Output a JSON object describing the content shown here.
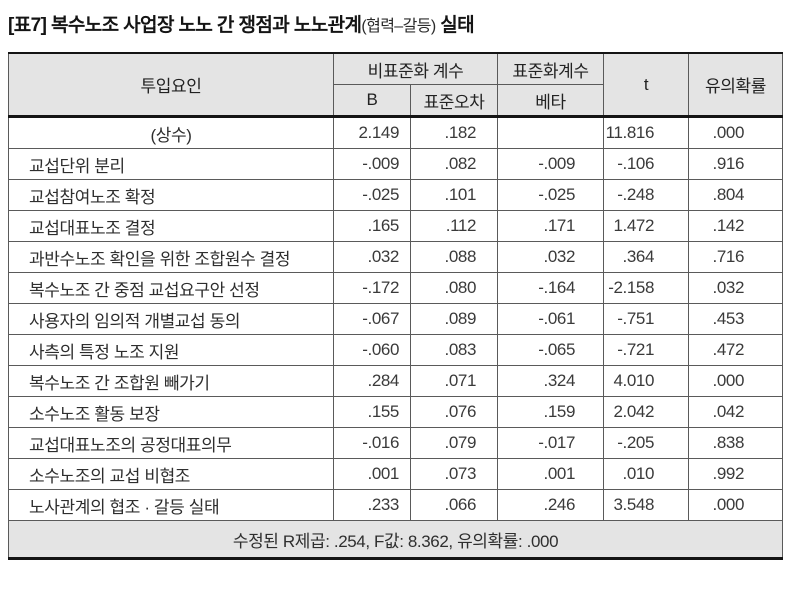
{
  "title": {
    "main": "[표7] 복수노조 사업장 노노 간 쟁점과 노노관계",
    "paren": "(협력–갈등)",
    "suffix": " 실태"
  },
  "table": {
    "headers": {
      "factor": "투입요인",
      "unstd_group": "비표준화 계수",
      "b": "B",
      "se": "표준오차",
      "std_group": "표준화계수",
      "beta": "베타",
      "t": "t",
      "sig": "유의확률"
    },
    "rows": [
      {
        "factor": "(상수)",
        "b": "2.149",
        "se": ".182",
        "beta": "",
        "t": "11.816",
        "sig": ".000"
      },
      {
        "factor": "교섭단위 분리",
        "b": "-.009",
        "se": ".082",
        "beta": "-.009",
        "t": "-.106",
        "sig": ".916"
      },
      {
        "factor": "교섭참여노조 확정",
        "b": "-.025",
        "se": ".101",
        "beta": "-.025",
        "t": "-.248",
        "sig": ".804"
      },
      {
        "factor": "교섭대표노조 결정",
        "b": ".165",
        "se": ".112",
        "beta": ".171",
        "t": "1.472",
        "sig": ".142"
      },
      {
        "factor": "과반수노조 확인을 위한 조합원수 결정",
        "b": ".032",
        "se": ".088",
        "beta": ".032",
        "t": ".364",
        "sig": ".716"
      },
      {
        "factor": "복수노조 간 중점 교섭요구안 선정",
        "b": "-.172",
        "se": ".080",
        "beta": "-.164",
        "t": "-2.158",
        "sig": ".032"
      },
      {
        "factor": "사용자의 임의적 개별교섭 동의",
        "b": "-.067",
        "se": ".089",
        "beta": "-.061",
        "t": "-.751",
        "sig": ".453"
      },
      {
        "factor": "사측의 특정 노조 지원",
        "b": "-.060",
        "se": ".083",
        "beta": "-.065",
        "t": "-.721",
        "sig": ".472"
      },
      {
        "factor": "복수노조 간 조합원 빼가기",
        "b": ".284",
        "se": ".071",
        "beta": ".324",
        "t": "4.010",
        "sig": ".000"
      },
      {
        "factor": "소수노조 활동 보장",
        "b": ".155",
        "se": ".076",
        "beta": ".159",
        "t": "2.042",
        "sig": ".042"
      },
      {
        "factor": "교섭대표노조의 공정대표의무",
        "b": "-.016",
        "se": ".079",
        "beta": "-.017",
        "t": "-.205",
        "sig": ".838"
      },
      {
        "factor": "소수노조의 교섭 비협조",
        "b": ".001",
        "se": ".073",
        "beta": ".001",
        "t": ".010",
        "sig": ".992"
      },
      {
        "factor": "노사관계의 협조 · 갈등 실태",
        "b": ".233",
        "se": ".066",
        "beta": ".246",
        "t": "3.548",
        "sig": ".000"
      }
    ],
    "footer": "수정된 R제곱: .254, F값: 8.362, 유의확률: .000",
    "colors": {
      "header_bg": "#e4e4e4",
      "footer_bg": "#e4e4e4",
      "grid_line": "#5a5a5a",
      "heavy_line": "#141414",
      "text": "#333333"
    }
  }
}
